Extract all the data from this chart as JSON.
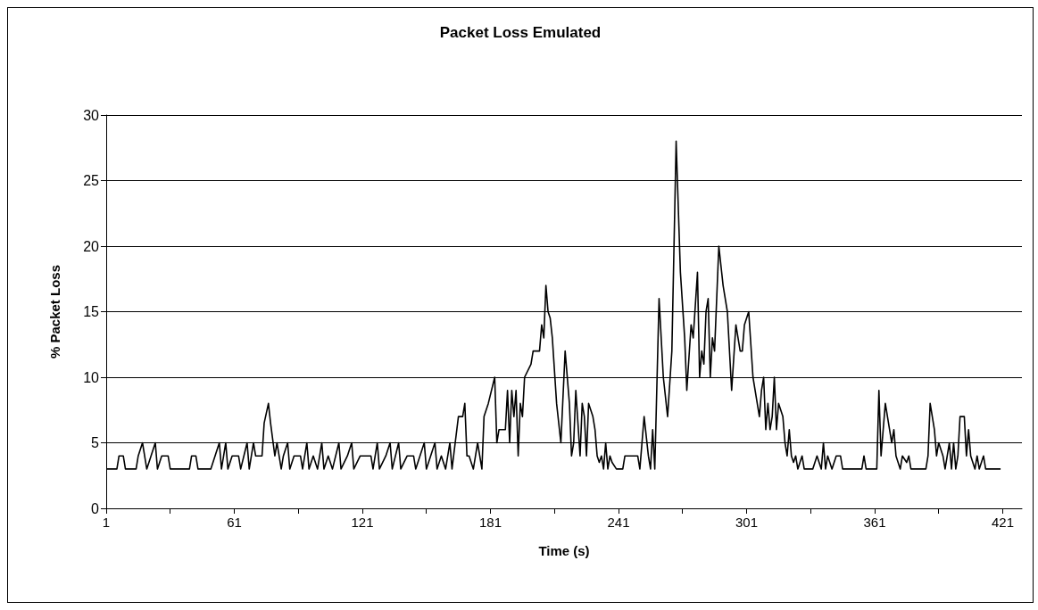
{
  "chart_data": {
    "type": "line",
    "title": "Packet Loss Emulated",
    "xlabel": "Time (s)",
    "ylabel": "% Packet Loss",
    "x": [
      1,
      6,
      7,
      9,
      10,
      15,
      16,
      18,
      20,
      22,
      24,
      25,
      27,
      30,
      31,
      40,
      41,
      43,
      44,
      50,
      52,
      54,
      55,
      57,
      58,
      60,
      63,
      64,
      67,
      68,
      70,
      71,
      74,
      75,
      77,
      78,
      80,
      81,
      83,
      84,
      86,
      87,
      89,
      92,
      93,
      95,
      96,
      98,
      100,
      102,
      103,
      105,
      107,
      110,
      111,
      114,
      116,
      117,
      120,
      125,
      126,
      128,
      129,
      132,
      134,
      135,
      138,
      139,
      142,
      145,
      146,
      150,
      151,
      153,
      155,
      156,
      158,
      160,
      162,
      163,
      166,
      168,
      169,
      170,
      171,
      173,
      175,
      177,
      178,
      180,
      183,
      184,
      185,
      188,
      189,
      190,
      191,
      192,
      193,
      194,
      195,
      196,
      197,
      200,
      201,
      204,
      205,
      206,
      207,
      208,
      209,
      210,
      212,
      214,
      216,
      218,
      219,
      220,
      221,
      223,
      224,
      225,
      226,
      227,
      229,
      230,
      231,
      232,
      233,
      234,
      235,
      236,
      237,
      238,
      240,
      243,
      244,
      250,
      251,
      253,
      255,
      256,
      257,
      258,
      260,
      262,
      264,
      266,
      267,
      268,
      270,
      272,
      273,
      275,
      276,
      278,
      279,
      280,
      281,
      282,
      283,
      284,
      285,
      286,
      288,
      290,
      292,
      294,
      296,
      297,
      298,
      299,
      300,
      302,
      304,
      306,
      307,
      308,
      309,
      310,
      311,
      312,
      313,
      314,
      315,
      316,
      318,
      319,
      320,
      321,
      322,
      323,
      324,
      325,
      327,
      328,
      332,
      334,
      336,
      337,
      338,
      339,
      341,
      343,
      345,
      346,
      355,
      356,
      357,
      362,
      363,
      364,
      365,
      366,
      368,
      369,
      370,
      371,
      373,
      374,
      376,
      377,
      378,
      385,
      386,
      387,
      389,
      390,
      391,
      393,
      394,
      396,
      397,
      398,
      399,
      400,
      401,
      403,
      404,
      405,
      406,
      408,
      409,
      410,
      412,
      413,
      420
    ],
    "values": [
      3,
      3,
      4,
      4,
      3,
      3,
      4,
      5,
      3,
      4,
      5,
      3,
      4,
      4,
      3,
      3,
      4,
      4,
      3,
      3,
      4,
      5,
      3,
      5,
      3,
      4,
      4,
      3,
      5,
      3,
      5,
      4,
      4,
      6.5,
      8,
      6.5,
      4,
      5,
      3,
      4,
      5,
      3,
      4,
      4,
      3,
      5,
      3,
      4,
      3,
      5,
      3,
      4,
      3,
      5,
      3,
      4,
      5,
      3,
      4,
      4,
      3,
      5,
      3,
      4,
      5,
      3,
      5,
      3,
      4,
      4,
      3,
      5,
      3,
      4,
      5,
      3,
      4,
      3,
      5,
      3,
      7,
      7,
      8,
      4,
      4,
      3,
      5,
      3,
      7,
      8,
      10,
      5,
      6,
      6,
      9,
      5,
      9,
      7,
      9,
      4,
      8,
      7,
      10,
      11,
      12,
      12,
      14,
      13,
      17,
      15,
      14.5,
      13,
      8,
      5,
      12,
      8,
      4,
      5,
      9,
      4,
      8,
      7,
      4,
      8,
      7,
      6,
      4,
      3.5,
      4,
      3,
      5,
      3,
      4,
      3.5,
      3,
      3,
      4,
      4,
      3,
      7,
      4,
      3,
      6,
      3,
      16,
      10,
      7,
      12,
      20,
      28,
      18,
      13,
      9,
      14,
      13,
      18,
      10,
      12,
      11,
      15,
      16,
      10,
      13,
      12,
      20,
      17,
      15,
      9,
      14,
      13,
      12,
      12,
      14,
      15,
      10,
      8,
      7,
      9,
      10,
      6,
      8,
      6,
      7,
      10,
      6,
      8,
      7,
      5,
      4,
      6,
      4,
      3.5,
      4,
      3,
      4,
      3,
      3,
      4,
      3,
      5,
      3,
      4,
      3,
      4,
      4,
      3,
      3,
      4,
      3,
      3,
      9,
      4,
      6,
      8,
      6,
      5,
      6,
      4,
      3,
      4,
      3.5,
      4,
      3,
      3,
      4,
      8,
      6,
      4,
      5,
      4,
      3,
      5,
      3,
      5,
      3,
      4,
      7,
      7,
      4,
      6,
      4,
      3,
      4,
      3,
      4,
      3,
      3
    ],
    "color": "#000000",
    "marker": "none",
    "line_style": "solid",
    "xlim": [
      1,
      430
    ],
    "xticks": [
      1,
      {
        "value": 31,
        "label": null
      },
      61,
      {
        "value": 91,
        "label": null
      },
      121,
      {
        "value": 151,
        "label": null
      },
      181,
      {
        "value": 211,
        "label": null
      },
      241,
      {
        "value": 271,
        "label": null
      },
      301,
      {
        "value": 331,
        "label": null
      },
      361,
      {
        "value": 391,
        "label": null
      },
      421
    ],
    "ylim": [
      0,
      30
    ],
    "yticks": [
      0,
      5,
      10,
      15,
      20,
      25,
      30
    ],
    "grid": "y"
  }
}
